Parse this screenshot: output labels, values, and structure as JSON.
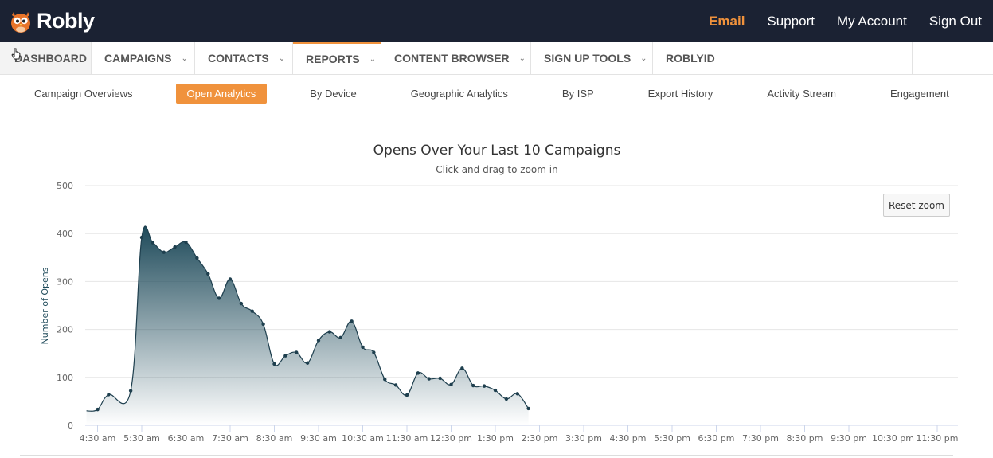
{
  "brand": {
    "name": "Robly"
  },
  "top_nav": [
    "Email",
    "Support",
    "My Account",
    "Sign Out"
  ],
  "main_nav": [
    {
      "label": "DASHBOARD",
      "dropdown": false
    },
    {
      "label": "CAMPAIGNS",
      "dropdown": true
    },
    {
      "label": "CONTACTS",
      "dropdown": true
    },
    {
      "label": "REPORTS",
      "dropdown": true
    },
    {
      "label": "CONTENT BROWSER",
      "dropdown": true
    },
    {
      "label": "SIGN UP TOOLS",
      "dropdown": true
    },
    {
      "label": "ROBLYID",
      "dropdown": false
    }
  ],
  "sub_nav": [
    "Campaign Overviews",
    "Open Analytics",
    "By Device",
    "Geographic Analytics",
    "By ISP",
    "Export History",
    "Activity Stream",
    "Engagement"
  ],
  "reset_zoom_label": "Reset zoom",
  "colors": {
    "accent": "#f0923c",
    "topbar": "#1b2233",
    "series": "#1e4a5a"
  },
  "chart_data": {
    "type": "area",
    "title": "Opens Over Your Last 10 Campaigns",
    "subtitle": "Click and drag to zoom in",
    "ylabel": "Number of Opens",
    "xlabel": "",
    "ylim": [
      0,
      500
    ],
    "yticks": [
      0,
      100,
      200,
      300,
      400,
      500
    ],
    "xticks": [
      "4:30 am",
      "5:30 am",
      "6:30 am",
      "7:30 am",
      "8:30 am",
      "9:30 am",
      "10:30 am",
      "11:30 am",
      "12:30 pm",
      "1:30 pm",
      "2:30 pm",
      "3:30 pm",
      "4:30 pm",
      "5:30 pm",
      "6:30 pm",
      "7:30 pm",
      "8:30 pm",
      "9:30 pm",
      "10:30 pm",
      "11:30 pm"
    ],
    "grid": true,
    "points": [
      [
        "4:15 am",
        30
      ],
      [
        "4:30 am",
        33
      ],
      [
        "4:45 am",
        64
      ],
      [
        "5:15 am",
        72
      ],
      [
        "5:30 am",
        392
      ],
      [
        "5:45 am",
        381
      ],
      [
        "6:00 am",
        361
      ],
      [
        "6:15 am",
        372
      ],
      [
        "6:30 am",
        382
      ],
      [
        "6:45 am",
        349
      ],
      [
        "7:00 am",
        316
      ],
      [
        "7:15 am",
        265
      ],
      [
        "7:30 am",
        305
      ],
      [
        "7:45 am",
        254
      ],
      [
        "8:00 am",
        238
      ],
      [
        "8:15 am",
        211
      ],
      [
        "8:30 am",
        128
      ],
      [
        "8:45 am",
        145
      ],
      [
        "9:00 am",
        152
      ],
      [
        "9:15 am",
        130
      ],
      [
        "9:30 am",
        177
      ],
      [
        "9:45 am",
        195
      ],
      [
        "10:00 am",
        183
      ],
      [
        "10:15 am",
        217
      ],
      [
        "10:30 am",
        163
      ],
      [
        "10:45 am",
        152
      ],
      [
        "11:00 am",
        96
      ],
      [
        "11:15 am",
        84
      ],
      [
        "11:30 am",
        63
      ],
      [
        "11:45 am",
        109
      ],
      [
        "12:00 pm",
        97
      ],
      [
        "12:15 pm",
        98
      ],
      [
        "12:30 pm",
        85
      ],
      [
        "12:45 pm",
        119
      ],
      [
        "1:00 pm",
        83
      ],
      [
        "1:15 pm",
        82
      ],
      [
        "1:30 pm",
        73
      ],
      [
        "1:45 pm",
        55
      ],
      [
        "2:00 pm",
        66
      ],
      [
        "2:15 pm",
        35
      ]
    ]
  }
}
